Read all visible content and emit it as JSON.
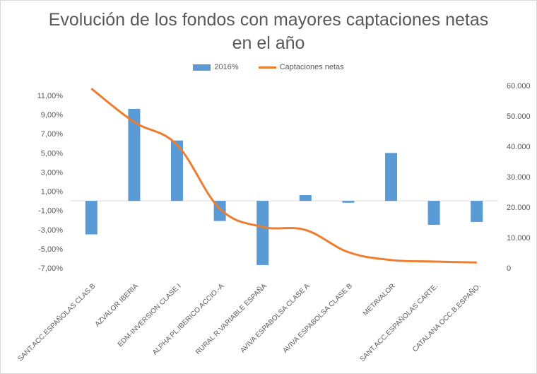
{
  "title_line1": "Evolución de los fondos con mayores captaciones netas",
  "title_line2": "en el año",
  "legend": {
    "bar": "2016%",
    "line": "Captaciones netas"
  },
  "colors": {
    "bar": "#5b9bd5",
    "line": "#ed7d31",
    "text": "#595959",
    "axis": "#d9d9d9"
  },
  "chart_data": {
    "type": "bar",
    "combo_line": true,
    "title": "Evolución de los fondos con mayores captaciones netas en el año",
    "categories": [
      "SANT.ACC.ESPAÑOLAS CLAS.B",
      "AZVALOR IBERIA",
      "EDM-INVERSION CLASE I",
      "ALPHA PL.IBERICO ACCIO.-A",
      "RURAL R.VARIABLE ESPAÑA",
      "AVIVA ESPABOLSA CLASE A",
      "AVIVA ESPABOLSA CLASE B",
      "METAVALOR",
      "SANT.ACC.ESPAÑOLAS CARTE.",
      "CATALANA OCC.B.ESPAÑO."
    ],
    "series": [
      {
        "name": "2016%",
        "type": "bar",
        "axis": "left",
        "values": [
          -3.5,
          9.6,
          6.3,
          -2.1,
          -6.7,
          0.6,
          -0.2,
          5.0,
          -2.5,
          -2.2
        ]
      },
      {
        "name": "Captaciones netas",
        "type": "line",
        "axis": "right",
        "values": [
          59000,
          48000,
          40500,
          19500,
          13500,
          12500,
          5200,
          2600,
          2100,
          1800
        ]
      }
    ],
    "y_left": {
      "ylim": [
        -7,
        12
      ],
      "ticks": [
        "11,00%",
        "9,00%",
        "7,00%",
        "5,00%",
        "3,00%",
        "1,00%",
        "-1,00%",
        "-3,00%",
        "-5,00%",
        "-7,00%"
      ],
      "tick_values": [
        11,
        9,
        7,
        5,
        3,
        1,
        -1,
        -3,
        -5,
        -7
      ]
    },
    "y_right": {
      "ylim": [
        0,
        60000
      ],
      "ticks": [
        "60.000",
        "50.000",
        "40.000",
        "30.000",
        "20.000",
        "10.000",
        "0"
      ],
      "tick_values": [
        60000,
        50000,
        40000,
        30000,
        20000,
        10000,
        0
      ]
    },
    "grid": false,
    "legend_position": "top"
  }
}
